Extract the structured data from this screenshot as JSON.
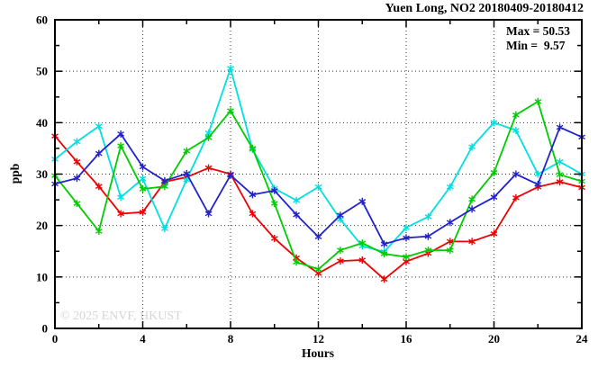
{
  "title": "Yuen Long, NO2 20180409-20180412",
  "annotations": {
    "max_label": "Max = 50.53",
    "min_label": "Min =  9.57"
  },
  "watermark": "© 2025 ENVF, HKUST",
  "chart_data": {
    "type": "line",
    "title": "Yuen Long, NO2 20180409-20180412",
    "xlabel": "Hours",
    "ylabel": "ppb",
    "xlim": [
      0,
      24
    ],
    "ylim": [
      0,
      60
    ],
    "x_major_ticks": [
      0,
      4,
      8,
      12,
      16,
      20,
      24
    ],
    "x_minor_ticks": [
      2,
      6,
      10,
      14,
      18,
      22
    ],
    "y_major_ticks": [
      0,
      10,
      20,
      30,
      40,
      50,
      60
    ],
    "y_minor_ticks": [
      5,
      15,
      25,
      35,
      45,
      55
    ],
    "x_gridlines": [
      4,
      8,
      12,
      16,
      20
    ],
    "y_gridlines": [
      10,
      20,
      30,
      40,
      50
    ],
    "grid_style": "dotted",
    "legend_position": "none",
    "marker": "asterisk",
    "stats": {
      "max": 50.53,
      "min": 9.57
    },
    "x": [
      0,
      1,
      2,
      3,
      4,
      5,
      6,
      7,
      8,
      9,
      10,
      11,
      12,
      13,
      14,
      15,
      16,
      17,
      18,
      19,
      20,
      21,
      22,
      23,
      24
    ],
    "series": [
      {
        "name": "series-red",
        "color": "#ee0000",
        "values": [
          37.4,
          32.4,
          27.6,
          22.3,
          22.6,
          28.5,
          29.4,
          31.2,
          30.0,
          22.3,
          17.5,
          13.7,
          10.7,
          13.1,
          13.3,
          9.57,
          13.0,
          14.6,
          16.9,
          16.9,
          18.4,
          25.4,
          27.5,
          28.5,
          27.4
        ]
      },
      {
        "name": "series-cyan",
        "color": "#00e0e0",
        "values": [
          32.9,
          36.3,
          39.3,
          25.5,
          29.1,
          19.4,
          28.9,
          38.0,
          50.53,
          34.8,
          27.2,
          24.9,
          27.5,
          21.2,
          16.0,
          14.9,
          19.6,
          21.7,
          27.5,
          35.3,
          40.0,
          38.5,
          30.0,
          32.4,
          30.0
        ]
      },
      {
        "name": "series-green",
        "color": "#00cc00",
        "values": [
          29.7,
          24.3,
          18.9,
          35.5,
          27.1,
          27.6,
          34.5,
          37.1,
          42.3,
          35.0,
          24.3,
          12.9,
          11.5,
          15.2,
          16.6,
          14.5,
          13.9,
          15.2,
          15.2,
          25.1,
          30.3,
          41.5,
          44.1,
          29.9,
          28.6
        ]
      },
      {
        "name": "series-blue",
        "color": "#2222cc",
        "values": [
          28.1,
          29.2,
          34.0,
          37.8,
          31.4,
          28.7,
          30.1,
          22.3,
          29.8,
          26.0,
          26.8,
          22.1,
          17.8,
          22.0,
          24.7,
          16.4,
          17.6,
          17.9,
          20.6,
          23.2,
          25.5,
          30.0,
          28.0,
          39.1,
          37.2
        ]
      }
    ]
  }
}
